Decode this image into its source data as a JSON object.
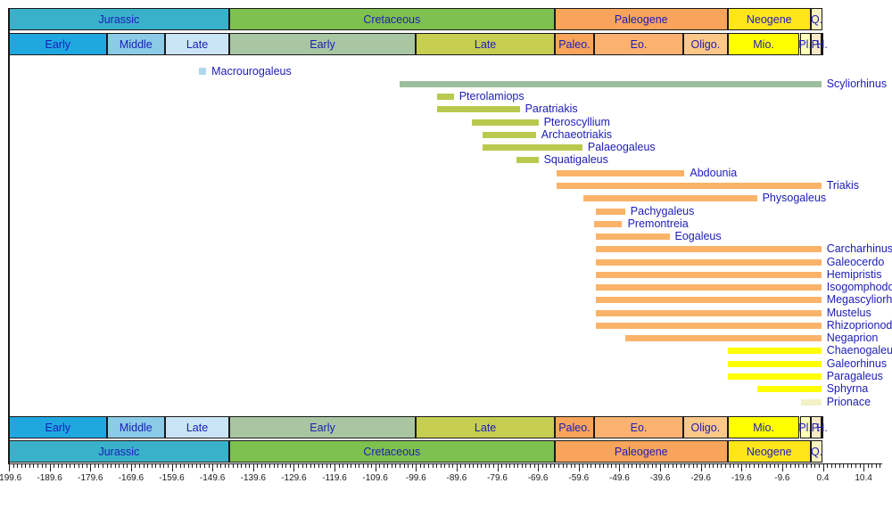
{
  "chart_data": {
    "type": "bar",
    "subtype": "horizontal-taxon-range-timeline",
    "title": "",
    "xlabel": "",
    "ylabel": "",
    "legend": null,
    "grid": false,
    "axis": {
      "unit": "Ma",
      "min": -199.6,
      "max": 10.4,
      "major_step": 10,
      "minor_step": 1,
      "tick_labels": [
        "-199.6",
        "-189.6",
        "-179.6",
        "-169.6",
        "-159.6",
        "-149.6",
        "-139.6",
        "-129.6",
        "-119.6",
        "-109.6",
        "-99.6",
        "-89.6",
        "-79.6",
        "-69.6",
        "-59.6",
        "-49.6",
        "-39.6",
        "-29.6",
        "-19.6",
        "-9.6",
        "0.4",
        "10.4"
      ]
    },
    "periods": [
      {
        "label": "Jurassic",
        "start": -199.6,
        "end": -145.5,
        "color": "#3AB1CB"
      },
      {
        "label": "Cretaceous",
        "start": -145.5,
        "end": -65.5,
        "color": "#7EC14E"
      },
      {
        "label": "Paleogene",
        "start": -65.5,
        "end": -23,
        "color": "#F8A45A"
      },
      {
        "label": "Neogene",
        "start": -23,
        "end": -2.6,
        "color": "#FFE61A"
      },
      {
        "label": "Q.",
        "start": -2.6,
        "end": 0.4,
        "color": "#F8F2C4"
      }
    ],
    "epochs": [
      {
        "label": "Early",
        "start": -199.6,
        "end": -175.6,
        "color": "#1FA8E0"
      },
      {
        "label": "Middle",
        "start": -175.6,
        "end": -161.2,
        "color": "#8BCBE8"
      },
      {
        "label": "Late",
        "start": -161.2,
        "end": -145.5,
        "color": "#C9E5F5"
      },
      {
        "label": "Early",
        "start": -145.5,
        "end": -99.6,
        "color": "#A8C6A1"
      },
      {
        "label": "Late",
        "start": -99.6,
        "end": -65.5,
        "color": "#C6CE51"
      },
      {
        "label": "Paleo.",
        "start": -65.5,
        "end": -55.8,
        "color": "#F8A45A"
      },
      {
        "label": "Eo.",
        "start": -55.8,
        "end": -33.9,
        "color": "#FBB271"
      },
      {
        "label": "Oligo.",
        "start": -33.9,
        "end": -23,
        "color": "#FCC888"
      },
      {
        "label": "Mio.",
        "start": -23,
        "end": -5.3,
        "color": "#FFFF00"
      },
      {
        "label": "Pl.",
        "start": -5.3,
        "end": -2.6,
        "color": "#FFFFB8"
      },
      {
        "label": "P.",
        "start": -2.6,
        "end": -0.01,
        "color": "#FAE9C8"
      },
      {
        "label": "H.",
        "start": -0.01,
        "end": 0.4,
        "color": "#FDF4E3"
      }
    ],
    "taxa": [
      {
        "name": "Macrourogaleus",
        "start": -152.9,
        "end": -151.1,
        "color": "#AFD7EE",
        "marker": true
      },
      {
        "name": "Scyliorhinus",
        "start": -103.7,
        "end": 0,
        "color": "#9DBE9C"
      },
      {
        "name": "Pterolamiops",
        "start": -94.5,
        "end": -90.3,
        "color": "#B9C94E"
      },
      {
        "name": "Paratriakis",
        "start": -94.5,
        "end": -74.1,
        "color": "#B9C94E"
      },
      {
        "name": "Pteroscyllium",
        "start": -85.9,
        "end": -69.5,
        "color": "#B9C94E"
      },
      {
        "name": "Archaeotriakis",
        "start": -83.3,
        "end": -70.1,
        "color": "#B9C94E"
      },
      {
        "name": "Palaeogaleus",
        "start": -83.3,
        "end": -58.7,
        "color": "#B9C94E"
      },
      {
        "name": "Squatigaleus",
        "start": -75.0,
        "end": -69.5,
        "color": "#B9C94E"
      },
      {
        "name": "Abdounia",
        "start": -65.1,
        "end": -33.6,
        "color": "#FAB369"
      },
      {
        "name": "Triakis",
        "start": -65.1,
        "end": 0,
        "color": "#FAB369"
      },
      {
        "name": "Physogaleus",
        "start": -58.5,
        "end": -15.8,
        "color": "#FAB369"
      },
      {
        "name": "Pachygaleus",
        "start": -55.5,
        "end": -48.2,
        "color": "#FAB369"
      },
      {
        "name": "Premontreia",
        "start": -55.9,
        "end": -48.9,
        "color": "#FAB369"
      },
      {
        "name": "Eogaleus",
        "start": -55.5,
        "end": -37.3,
        "color": "#FAB369"
      },
      {
        "name": "Carcharhinus",
        "start": -55.5,
        "end": 0,
        "color": "#FAB369"
      },
      {
        "name": "Galeocerdo",
        "start": -55.5,
        "end": 0,
        "color": "#FAB369"
      },
      {
        "name": "Hemipristis",
        "start": -55.5,
        "end": 0,
        "color": "#FAB369"
      },
      {
        "name": "Isogomphodon",
        "start": -55.5,
        "end": 0,
        "color": "#FAB369"
      },
      {
        "name": "Megascyliorhinus",
        "start": -55.5,
        "end": 0,
        "color": "#FAB369"
      },
      {
        "name": "Mustelus",
        "start": -55.5,
        "end": 0,
        "color": "#FAB369"
      },
      {
        "name": "Rhizoprionodon",
        "start": -55.5,
        "end": 0,
        "color": "#FAB369"
      },
      {
        "name": "Negaprion",
        "start": -48.2,
        "end": 0,
        "color": "#FAB369"
      },
      {
        "name": "Chaenogaleus",
        "start": -23,
        "end": 0,
        "color": "#FFFF00"
      },
      {
        "name": "Galeorhinus",
        "start": -23,
        "end": 0,
        "color": "#FFFF00"
      },
      {
        "name": "Paragaleus",
        "start": -23,
        "end": 0,
        "color": "#FFFF00"
      },
      {
        "name": "Sphyrna",
        "start": -15.8,
        "end": 0,
        "color": "#FFFF00"
      },
      {
        "name": "Prionace",
        "start": -4.9,
        "end": 0,
        "color": "#F2F2C6"
      }
    ]
  },
  "colors": {
    "label_text": "#1c1cb9",
    "axis_text": "#1a1a1a",
    "frame": "#1a1a1a",
    "background": "#ffffff"
  }
}
